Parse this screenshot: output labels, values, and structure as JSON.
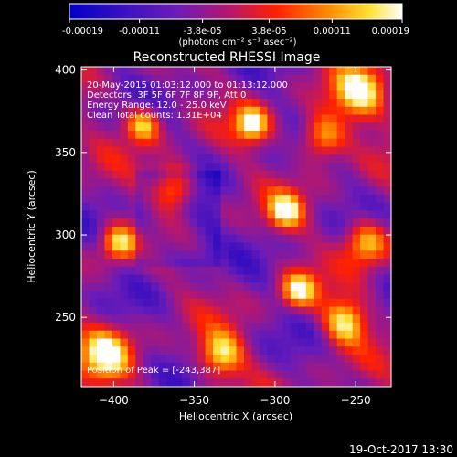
{
  "chart_data": {
    "type": "heatmap",
    "title": "Reconstructed RHESSI Image",
    "xlabel": "Heliocentric X (arcsec)",
    "ylabel": "Heliocentric Y (arcsec)",
    "xlim": [
      -420,
      -228
    ],
    "ylim": [
      208,
      402
    ],
    "x_ticks": [
      -400,
      -350,
      -300,
      -250
    ],
    "y_ticks": [
      250,
      300,
      350,
      400
    ],
    "colorbar": {
      "range": [
        -0.00019,
        0.00019
      ],
      "tick_values": [
        -0.00019,
        -0.00011,
        -3.8e-05,
        3.8e-05,
        0.00011,
        0.00019
      ],
      "tick_labels": [
        "-0.00019",
        "-0.00011",
        "-3.8e-05",
        "3.8e-05",
        "0.00011",
        "0.00019"
      ],
      "units": "(photons cm⁻² s⁻¹ asec⁻²)"
    },
    "annotations": [
      "20-May-2015 01:03:12.000 to 01:13:12.000",
      "Detectors: 3F 5F 6F 7F 8F 9F, Att 0",
      "Energy Range: 12.0 - 25.0 keV",
      "Clean     Total counts: 1.31E+04"
    ],
    "peak": {
      "label": "Position of Peak = [-243,387]",
      "x": -243,
      "y": 387
    },
    "grid_cells": {
      "nx": 40,
      "ny": 40
    },
    "color_scale": [
      "#0000c8",
      "#6a1cb8",
      "#b4186e",
      "#ff2000",
      "#ff8c00",
      "#ffe030",
      "#ffffff"
    ]
  },
  "footer": {
    "timestamp": "19-Oct-2017 13:30"
  }
}
